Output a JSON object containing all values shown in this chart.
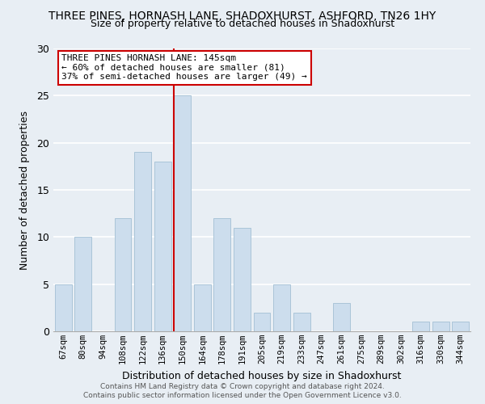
{
  "title": "THREE PINES, HORNASH LANE, SHADOXHURST, ASHFORD, TN26 1HY",
  "subtitle": "Size of property relative to detached houses in Shadoxhurst",
  "xlabel": "Distribution of detached houses by size in Shadoxhurst",
  "ylabel": "Number of detached properties",
  "bar_labels": [
    "67sqm",
    "80sqm",
    "94sqm",
    "108sqm",
    "122sqm",
    "136sqm",
    "150sqm",
    "164sqm",
    "178sqm",
    "191sqm",
    "205sqm",
    "219sqm",
    "233sqm",
    "247sqm",
    "261sqm",
    "275sqm",
    "289sqm",
    "302sqm",
    "316sqm",
    "330sqm",
    "344sqm"
  ],
  "bar_values": [
    5,
    10,
    0,
    12,
    19,
    18,
    25,
    5,
    12,
    11,
    2,
    5,
    2,
    0,
    3,
    0,
    0,
    0,
    1,
    1,
    1
  ],
  "bar_color": "#ccdded",
  "bar_edge_color": "#aac4d8",
  "highlight_bar_index": 6,
  "red_line_index": 6,
  "ylim": [
    0,
    30
  ],
  "yticks": [
    0,
    5,
    10,
    15,
    20,
    25,
    30
  ],
  "annotation_title": "THREE PINES HORNASH LANE: 145sqm",
  "annotation_line1": "← 60% of detached houses are smaller (81)",
  "annotation_line2": "37% of semi-detached houses are larger (49) →",
  "annotation_box_facecolor": "#ffffff",
  "annotation_box_edgecolor": "#cc0000",
  "red_line_color": "#cc0000",
  "footer_line1": "Contains HM Land Registry data © Crown copyright and database right 2024.",
  "footer_line2": "Contains public sector information licensed under the Open Government Licence v3.0.",
  "background_color": "#e8eef4",
  "grid_color": "#ffffff",
  "title_fontsize": 10,
  "subtitle_fontsize": 9,
  "xlabel_fontsize": 9,
  "ylabel_fontsize": 9,
  "tick_fontsize": 7.5,
  "annotation_fontsize": 8,
  "footer_fontsize": 6.5
}
